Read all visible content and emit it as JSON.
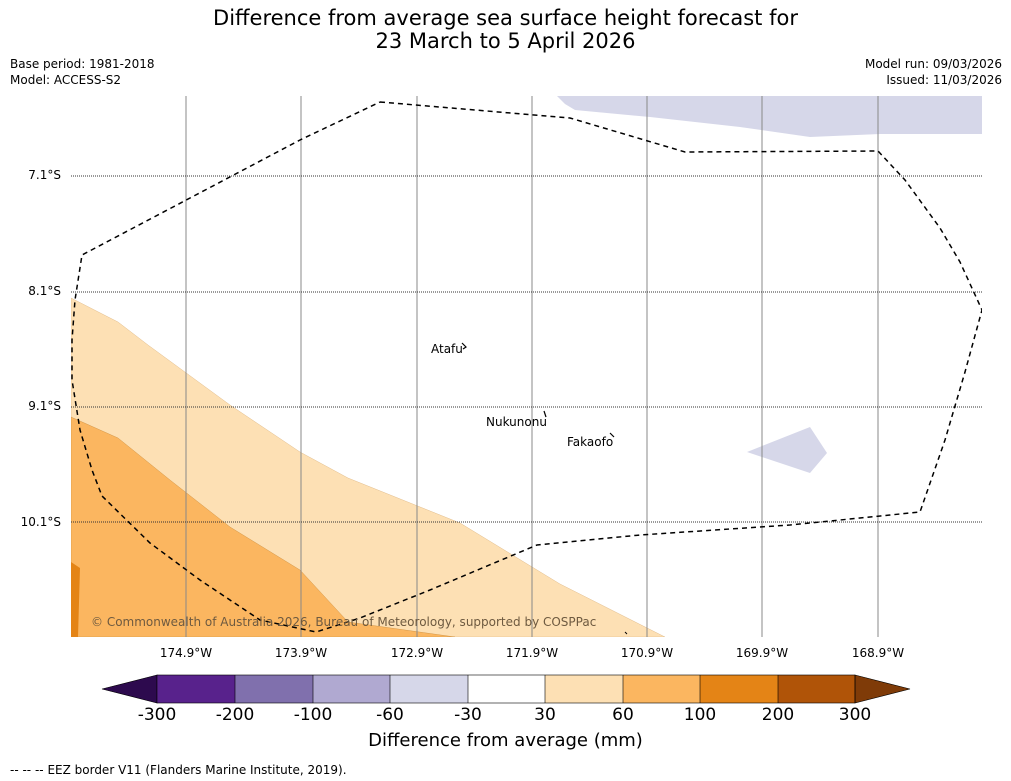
{
  "title": {
    "line1": "Difference from average sea surface height forecast for",
    "line2": "23 March to 5 April 2026"
  },
  "meta": {
    "base_period": "Base period: 1981-2018",
    "model": "Model: ACCESS-S2",
    "model_run": "Model run: 09/03/2026",
    "issued": "Issued: 11/03/2026"
  },
  "map": {
    "lat_labels": [
      "7.1°S",
      "8.1°S",
      "9.1°S",
      "10.1°S"
    ],
    "lon_labels": [
      "174.9°W",
      "173.9°W",
      "172.9°W",
      "171.9°W",
      "170.9°W",
      "169.9°W",
      "168.9°W"
    ],
    "places": [
      "Atafu",
      "Nukunonu",
      "Fakaofo"
    ],
    "copyright": "© Commonwealth of Australia 2026, Bureau of Meteorology, supported by COSPPac",
    "legend_line": "EEZ border V11 (Flanders Marine Institute, 2019)."
  },
  "colorbar": {
    "title": "Difference from average (mm)",
    "ticks": [
      "-300",
      "-200",
      "-100",
      "-60",
      "-30",
      "30",
      "60",
      "100",
      "200",
      "300"
    ],
    "colors": [
      "#2d0a4e",
      "#58228c",
      "#8070ad",
      "#b0a9d1",
      "#d6d7e9",
      "#ffffff",
      "#fde0b4",
      "#fbb660",
      "#e48416",
      "#b05408",
      "#7f3b08"
    ]
  },
  "footer": {
    "prefix": "--  --  --",
    "text": "EEZ border V11 (Flanders Marine Institute, 2019)."
  }
}
